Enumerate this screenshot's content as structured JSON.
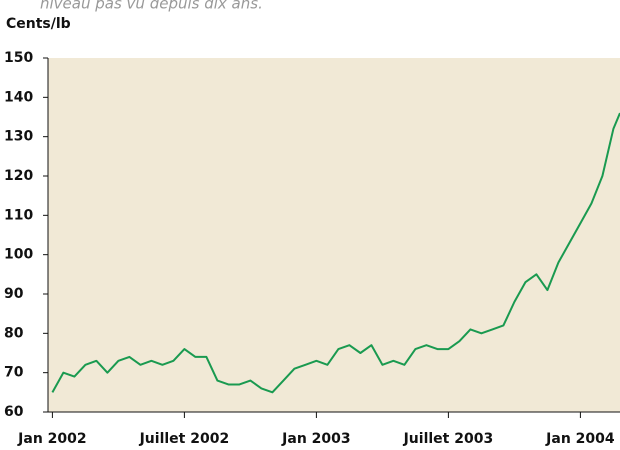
{
  "chart_data": {
    "type": "line",
    "subtitle": "niveau pas vu depuis dix ans.",
    "ylabel": "Cents/lb",
    "x": [
      0,
      0.5,
      1,
      1.5,
      2,
      2.5,
      3,
      3.5,
      4,
      4.5,
      5,
      5.5,
      6,
      6.5,
      7,
      7.5,
      8,
      8.5,
      9,
      9.5,
      10,
      10.5,
      11,
      11.5,
      12,
      12.5,
      13,
      13.5,
      14,
      14.5,
      15,
      15.5,
      16,
      16.5,
      17,
      17.5,
      18,
      18.5,
      19,
      19.5,
      20,
      20.5,
      21,
      21.5,
      22,
      22.5,
      23,
      23.5,
      24,
      24.5,
      25,
      25.5,
      25.8
    ],
    "series": [
      {
        "name": "Cents/lb",
        "color": "#1a9a50",
        "values": [
          65,
          70,
          69,
          72,
          73,
          70,
          73,
          74,
          72,
          73,
          72,
          73,
          76,
          74,
          74,
          68,
          67,
          67,
          68,
          66,
          65,
          68,
          71,
          72,
          73,
          72,
          76,
          77,
          75,
          77,
          72,
          73,
          72,
          76,
          77,
          76,
          76,
          78,
          81,
          80,
          81,
          82,
          88,
          93,
          95,
          91,
          98,
          103,
          108,
          113,
          120,
          132,
          136
        ]
      }
    ],
    "xlim": [
      -0.2,
      25.8
    ],
    "xticks": [
      {
        "value": 0,
        "label": "Jan 2002"
      },
      {
        "value": 6,
        "label": "Juillet 2002"
      },
      {
        "value": 12,
        "label": "Jan 2003"
      },
      {
        "value": 18,
        "label": "Juillet 2003"
      },
      {
        "value": 24,
        "label": "Jan 2004"
      }
    ],
    "ylim": [
      60,
      150
    ],
    "yticks": [
      60,
      70,
      80,
      90,
      100,
      110,
      120,
      130,
      140,
      150
    ],
    "background": "#f1e9d6"
  }
}
